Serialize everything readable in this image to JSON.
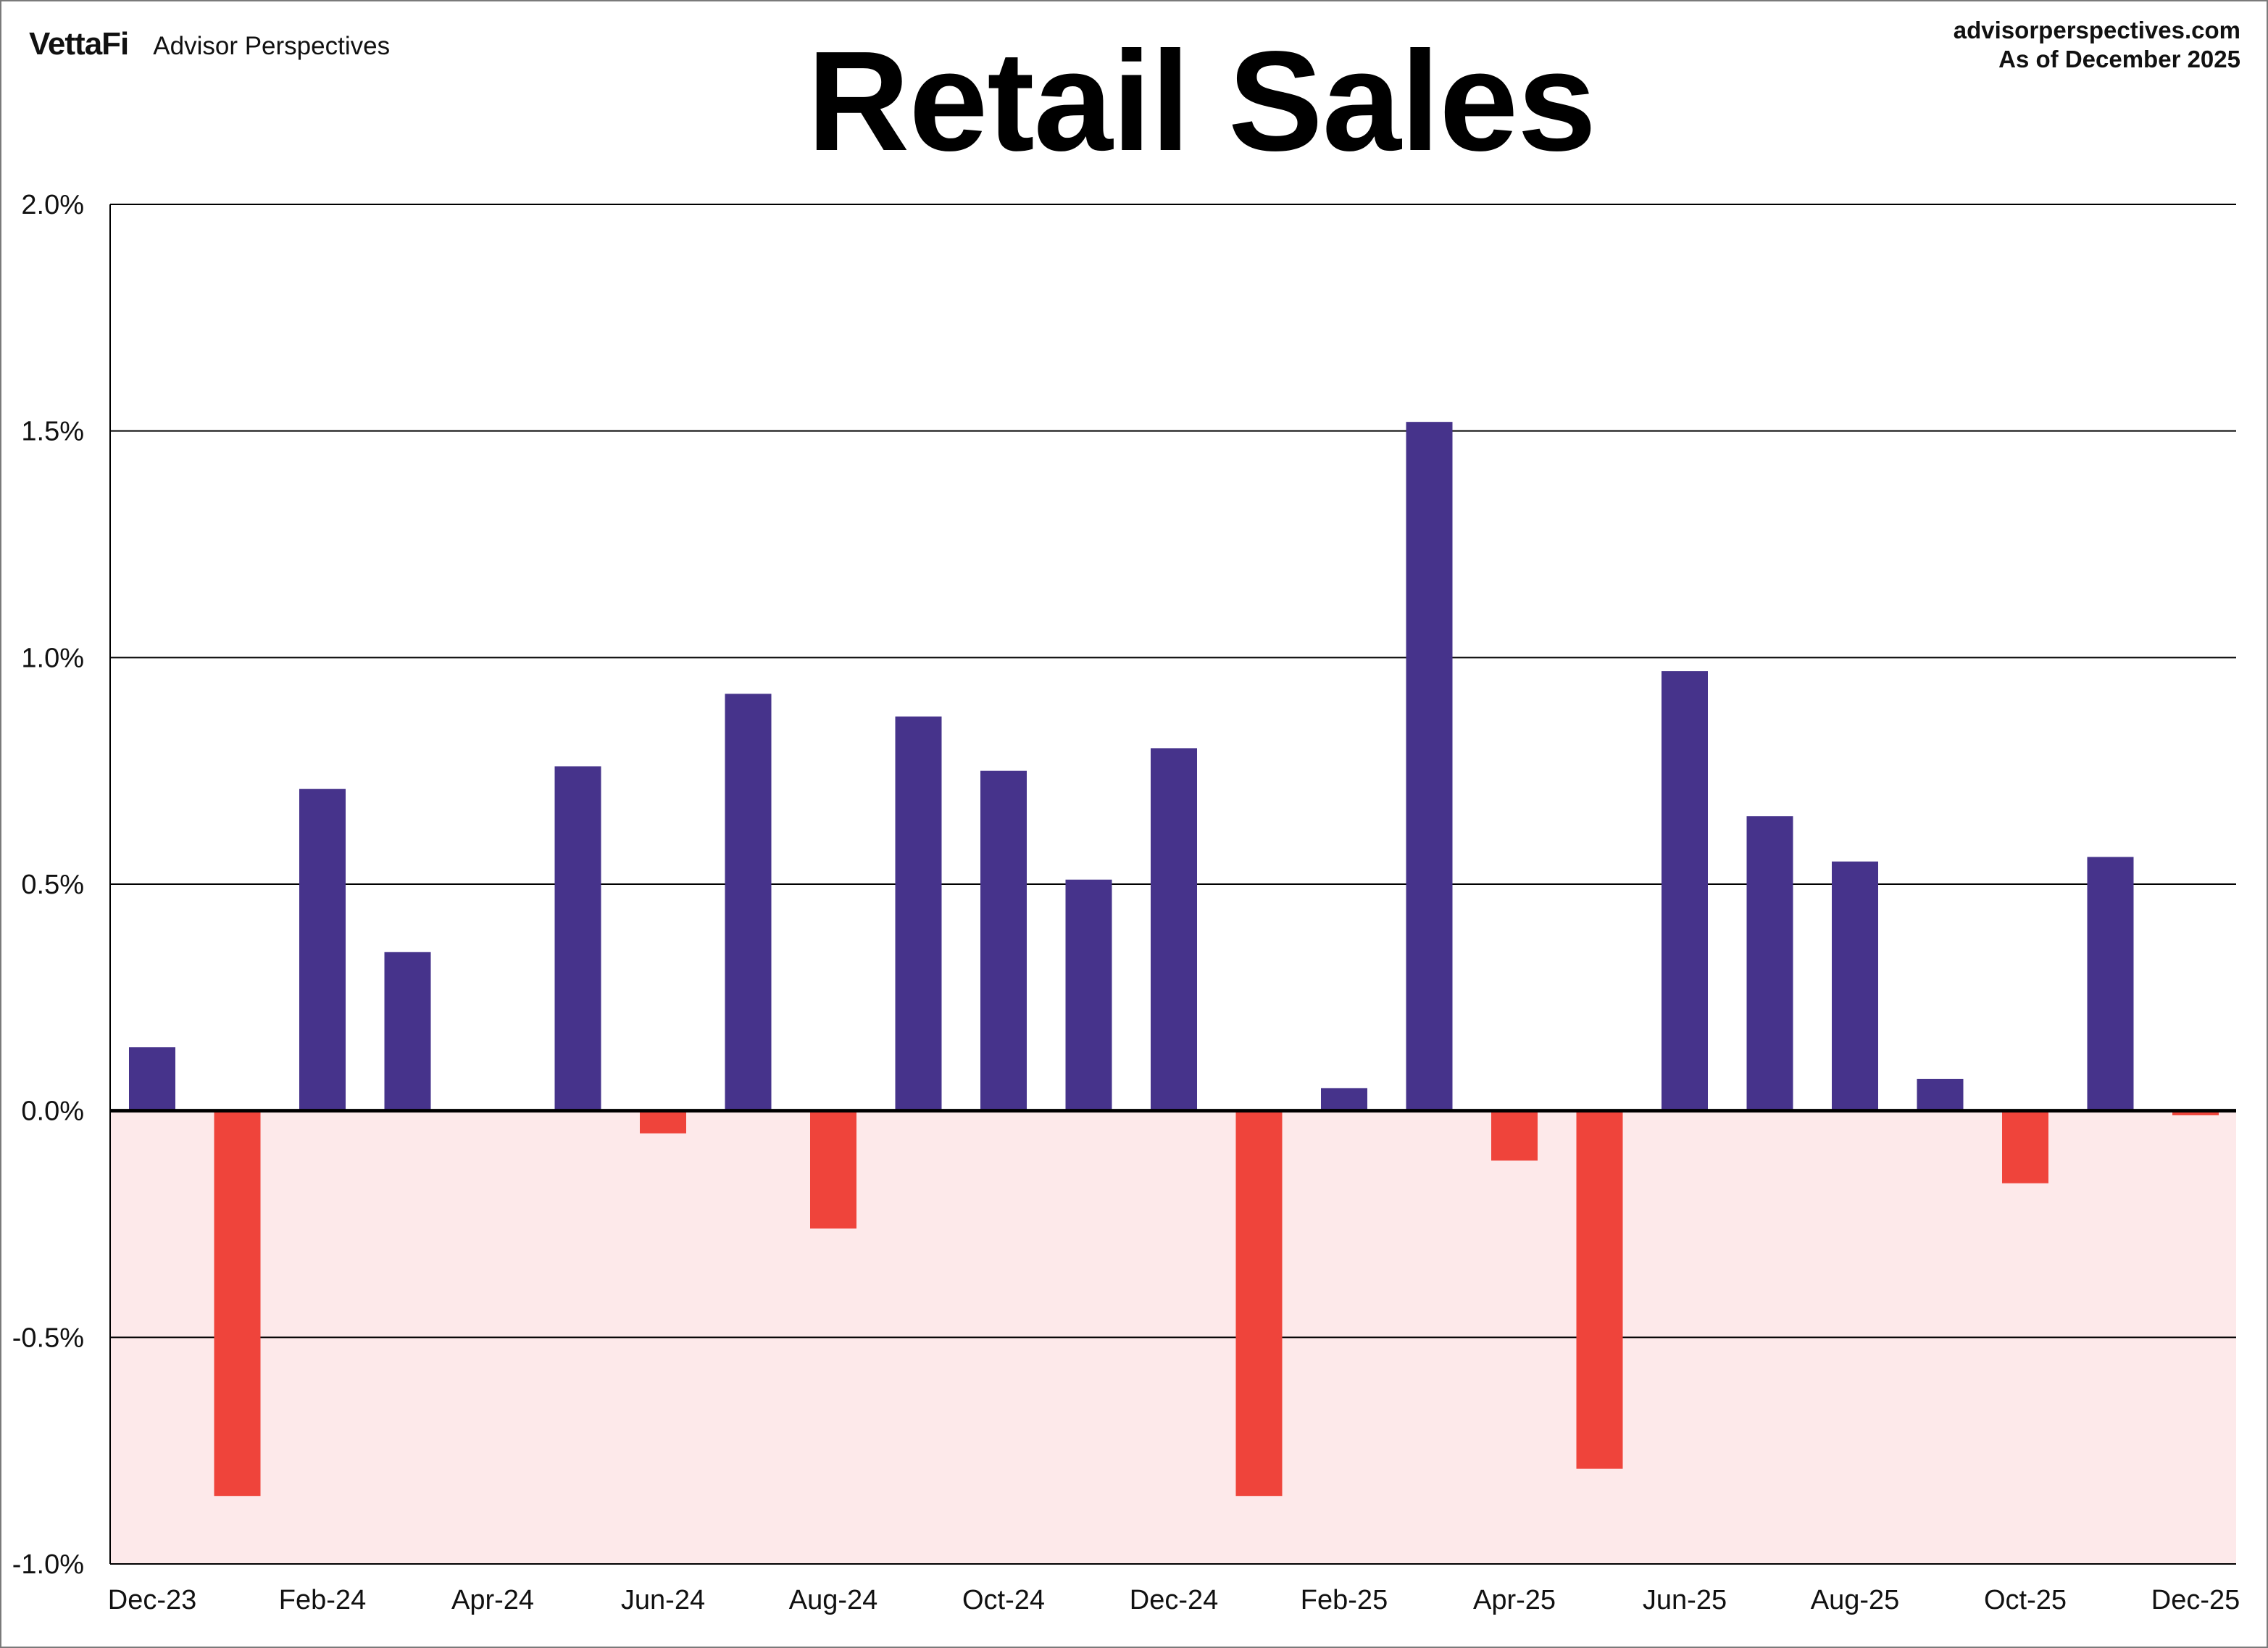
{
  "header": {
    "logo_text": "VettaFi",
    "publisher": "Advisor Perspectives",
    "site": "advisorperspectives.com",
    "as_of": "As of December 2025"
  },
  "colors": {
    "positive": "#46338b",
    "negative": "#ef443b",
    "negative_region": "#fde9ea",
    "gridline": "#000000",
    "frame": "#7a7a7a"
  },
  "chart_data": {
    "type": "bar",
    "title": "Retail Sales",
    "xlabel": "",
    "ylabel": "",
    "ylim": [
      -1.0,
      2.0
    ],
    "y_ticks": [
      -1.0,
      -0.5,
      0.0,
      0.5,
      1.0,
      1.5,
      2.0
    ],
    "y_tick_labels": [
      "-1.0%",
      "-0.5%",
      "0.0%",
      "0.5%",
      "1.0%",
      "1.5%",
      "2.0%"
    ],
    "grid": true,
    "legend": "none",
    "categories": [
      "Dec-23",
      "Jan-24",
      "Feb-24",
      "Mar-24",
      "Apr-24",
      "May-24",
      "Jun-24",
      "Jul-24",
      "Aug-24",
      "Sep-24",
      "Oct-24",
      "Nov-24",
      "Dec-24",
      "Jan-25",
      "Feb-25",
      "Mar-25",
      "Apr-25",
      "May-25",
      "Jun-25",
      "Jul-25",
      "Aug-25",
      "Sep-25",
      "Oct-25",
      "Nov-25",
      "Dec-25"
    ],
    "x_tick_labels": [
      "Dec-23",
      "Feb-24",
      "Apr-24",
      "Jun-24",
      "Aug-24",
      "Oct-24",
      "Dec-24",
      "Feb-25",
      "Apr-25",
      "Jun-25",
      "Aug-25",
      "Oct-25",
      "Dec-25"
    ],
    "values": [
      0.14,
      -0.85,
      0.71,
      0.35,
      0.0,
      0.76,
      -0.05,
      0.92,
      -0.26,
      0.87,
      0.75,
      0.51,
      0.8,
      -0.85,
      0.05,
      1.52,
      -0.11,
      -0.79,
      0.97,
      0.65,
      0.55,
      0.07,
      -0.16,
      0.56,
      -0.01
    ]
  }
}
